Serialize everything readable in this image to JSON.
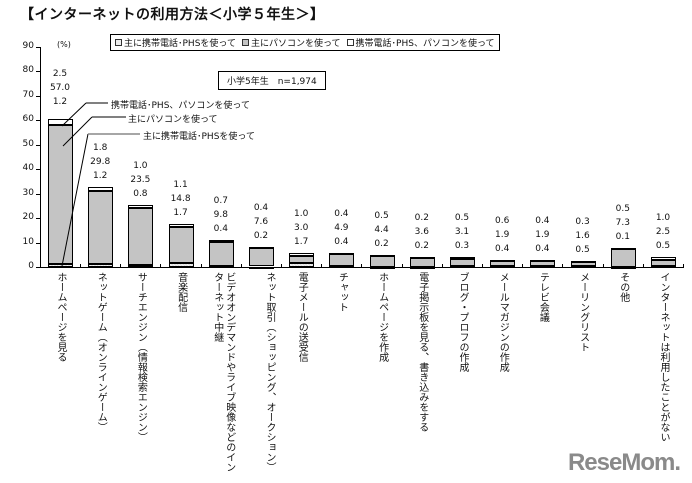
{
  "title": "【インターネットの利用方法＜小学５年生＞】",
  "legend": [
    {
      "label": "主に携帯電話･PHSを使って",
      "key": "phone"
    },
    {
      "label": "主にパソコンを使って",
      "key": "pc"
    },
    {
      "label": "携帯電話･PHS、パソコンを使って",
      "key": "both"
    }
  ],
  "sample_label": "小学5年生　n=1,974",
  "unit_label": "(%)",
  "callouts": {
    "both": "携帯電話･PHS、パソコンを使って",
    "pc": "主にパソコンを使って",
    "phone": "主に携帯電話･PHSを使って"
  },
  "watermark": "ReseMom.",
  "colors": {
    "phone": "#e6e6e6",
    "pc": "#c4c4c4",
    "both": "#ffffff",
    "axis": "#000000"
  },
  "chart_data": {
    "type": "bar",
    "stacked": true,
    "title": "【インターネットの利用方法＜小学５年生＞】",
    "subtitle": "小学5年生 n=1,974",
    "xlabel": "",
    "ylabel": "(%)",
    "ylim": [
      0,
      90
    ],
    "yticks": [
      0,
      10,
      20,
      30,
      40,
      50,
      60,
      70,
      80,
      90
    ],
    "grid": false,
    "legend_position": "top",
    "categories": [
      "ホームページを見る",
      "ネットゲーム（オンラインゲーム）",
      "サーチエンジン（情報検索エンジン）",
      "音楽配信",
      "ビデオオンデマンドやライブ映像などのインターネット中継",
      "ネット取引（ショッピング、オークション）",
      "電子メールの送受信",
      "チャット",
      "ホームページを作成",
      "電子掲示板を見る、書き込みをする",
      "ブログ・プロフの作成",
      "メールマガジンの作成",
      "テレビ会議",
      "メーリングリスト",
      "その他",
      "インターネットは利用したことがない"
    ],
    "series": [
      {
        "name": "主に携帯電話･PHSを使って",
        "values": [
          1.2,
          1.2,
          0.8,
          1.7,
          0.4,
          0.2,
          1.7,
          0.4,
          0.2,
          0.2,
          0.3,
          0.4,
          0.4,
          0.5,
          0.1,
          0.5
        ]
      },
      {
        "name": "主にパソコンを使って",
        "values": [
          57.0,
          29.8,
          23.5,
          14.8,
          9.8,
          7.6,
          3.0,
          4.9,
          4.4,
          3.6,
          3.1,
          1.9,
          1.9,
          1.6,
          7.3,
          2.5
        ]
      },
      {
        "name": "携帯電話･PHS、パソコンを使って",
        "values": [
          2.5,
          1.8,
          1.0,
          1.1,
          0.7,
          0.4,
          1.0,
          0.4,
          0.5,
          0.2,
          0.5,
          0.6,
          0.4,
          0.3,
          0.5,
          1.0
        ]
      }
    ]
  }
}
